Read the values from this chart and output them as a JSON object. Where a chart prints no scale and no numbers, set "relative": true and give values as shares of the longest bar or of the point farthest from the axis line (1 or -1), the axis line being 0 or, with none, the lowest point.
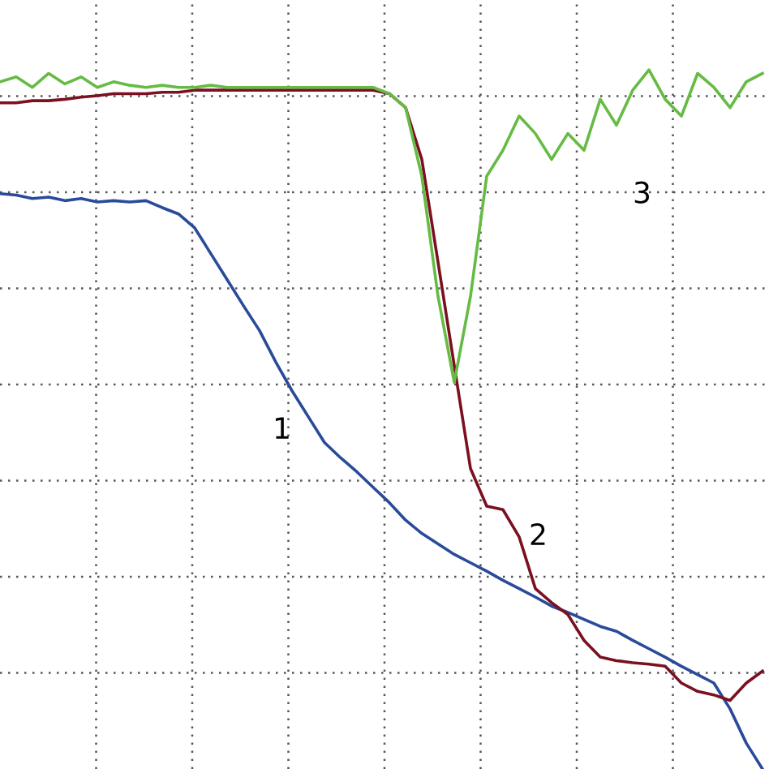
{
  "chart_data": {
    "type": "line",
    "relative": true,
    "grid": true,
    "tick_labels": false,
    "legend": false,
    "categories": [
      null,
      null,
      null,
      null,
      null,
      null,
      null,
      null,
      null,
      null,
      null,
      null,
      null,
      null,
      null,
      null,
      null,
      null,
      null,
      null,
      null,
      null,
      null,
      null,
      null,
      null,
      null,
      null,
      null,
      null,
      null,
      null,
      null,
      null,
      null,
      null,
      null,
      null,
      null,
      null,
      null,
      null,
      null,
      null,
      null,
      null,
      null,
      null
    ],
    "series": [
      {
        "name": "1",
        "color": "#2a4a9a",
        "values": [
          0.823,
          0.821,
          0.816,
          0.818,
          0.813,
          0.816,
          0.811,
          0.813,
          0.811,
          0.813,
          0.803,
          0.794,
          0.774,
          0.737,
          0.7,
          0.663,
          0.627,
          0.582,
          0.541,
          0.504,
          0.467,
          0.445,
          0.425,
          0.403,
          0.381,
          0.356,
          0.337,
          0.322,
          0.307,
          0.295,
          0.283,
          0.27,
          0.258,
          0.246,
          0.233,
          0.224,
          0.214,
          0.204,
          0.197,
          0.184,
          0.172,
          0.16,
          0.147,
          0.135,
          0.123,
          0.086,
          0.037,
          0
        ]
      },
      {
        "name": "2",
        "color": "#7a1020",
        "values": [
          0.953,
          0.953,
          0.956,
          0.956,
          0.958,
          0.961,
          0.963,
          0.966,
          0.966,
          0.966,
          0.968,
          0.968,
          0.971,
          0.971,
          0.971,
          0.971,
          0.971,
          0.971,
          0.971,
          0.971,
          0.971,
          0.971,
          0.971,
          0.971,
          0.966,
          0.946,
          0.872,
          0.725,
          0.577,
          0.43,
          0.376,
          0.371,
          0.332,
          0.258,
          0.238,
          0.221,
          0.184,
          0.16,
          0.155,
          0.152,
          0.15,
          0.147,
          0.123,
          0.111,
          0.106,
          0.098,
          0.123,
          0.14
        ]
      },
      {
        "name": "3",
        "color": "#66bb44",
        "values": [
          0.983,
          0.99,
          0.975,
          0.995,
          0.98,
          0.99,
          0.975,
          0.983,
          0.978,
          0.975,
          0.978,
          0.975,
          0.975,
          0.978,
          0.975,
          0.975,
          0.975,
          0.975,
          0.975,
          0.975,
          0.975,
          0.975,
          0.975,
          0.975,
          0.966,
          0.946,
          0.848,
          0.676,
          0.553,
          0.676,
          0.848,
          0.885,
          0.934,
          0.909,
          0.872,
          0.909,
          0.885,
          0.958,
          0.921,
          0.971,
          1,
          0.958,
          0.934,
          0.995,
          0.975,
          0.946,
          0.983,
          0.995
        ]
      }
    ]
  }
}
